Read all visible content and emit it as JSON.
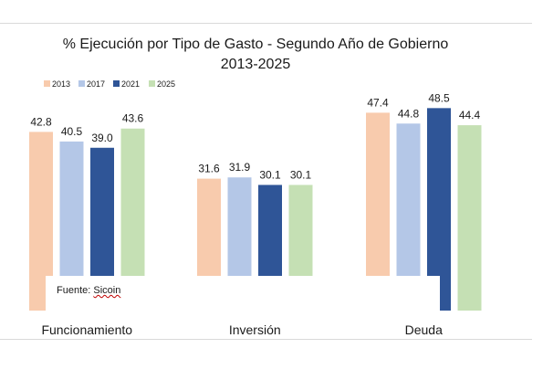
{
  "chart_data": {
    "type": "bar",
    "title": "% Ejecución por Tipo de Gasto - Segundo Año de Gobierno",
    "subtitle": "2013-2025",
    "categories": [
      "Funcionamiento",
      "Inversión",
      "Deuda"
    ],
    "series": [
      {
        "name": "2013",
        "values": [
          42.8,
          31.6,
          47.4
        ],
        "labels": [
          "42.8",
          "31.6",
          "47.4"
        ],
        "color": "#f8cbad"
      },
      {
        "name": "2017",
        "values": [
          40.5,
          31.9,
          44.8
        ],
        "labels": [
          "40.5",
          "31.9",
          "44.8"
        ],
        "color": "#b4c7e7"
      },
      {
        "name": "2021",
        "values": [
          39.0,
          30.1,
          48.5
        ],
        "labels": [
          "39.0",
          "30.1",
          "48.5"
        ],
        "color": "#2f5597"
      },
      {
        "name": "2025",
        "values": [
          43.6,
          30.1,
          44.4
        ],
        "labels": [
          "43.6",
          "30.1",
          "44.4"
        ],
        "color": "#c5e0b4"
      }
    ],
    "legend_position": "top-left",
    "grid": false,
    "ylim": [
      0,
      50
    ]
  },
  "source": {
    "prefix": "Fuente: ",
    "name": "Sicoin"
  }
}
